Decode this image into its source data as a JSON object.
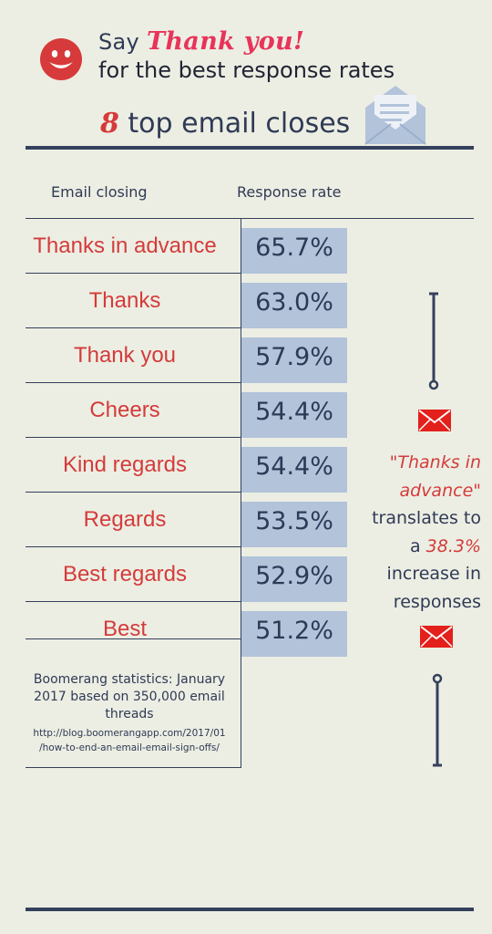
{
  "header": {
    "say": "Say",
    "thank_you": "Thank you!",
    "subtitle": "for the best response rates",
    "top_number": "8",
    "top_text": "top email closes"
  },
  "table": {
    "col_closing": "Email closing",
    "col_rate": "Response rate"
  },
  "chart_data": {
    "type": "table",
    "title": "8 top email closes",
    "columns": [
      "Email closing",
      "Response rate"
    ],
    "categories": [
      "Thanks in advance",
      "Thanks",
      "Thank you",
      "Cheers",
      "Kind regards",
      "Regards",
      "Best regards",
      "Best"
    ],
    "values": [
      65.7,
      63.0,
      57.9,
      54.4,
      54.4,
      53.5,
      52.9,
      51.2
    ],
    "labels": [
      "65.7%",
      "63.0%",
      "57.9%",
      "54.4%",
      "54.4%",
      "53.5%",
      "52.9%",
      "51.2%"
    ]
  },
  "source": {
    "text": "Boomerang statistics: January 2017 based on 350,000 email threads",
    "url_line1": "http://blog.boomerangapp.com/2017/01",
    "url_line2": "/how-to-end-an-email-email-sign-offs/"
  },
  "callout": {
    "quote_line1": "\"Thanks in",
    "quote_line2": "advance\"",
    "line3": "translates to",
    "line4_prefix": "a ",
    "line4_pct": "38.3%",
    "line5": "increase in",
    "line6": "responses"
  },
  "icons": {
    "smiley": "smiley-face-icon",
    "envelope_open": "open-envelope-icon",
    "envelope_red": "envelope-icon"
  },
  "colors": {
    "background": "#eceee3",
    "navy": "#34405c",
    "red": "#d43b3b",
    "pink": "#e8335a",
    "rate_box": "#b2c3da"
  }
}
